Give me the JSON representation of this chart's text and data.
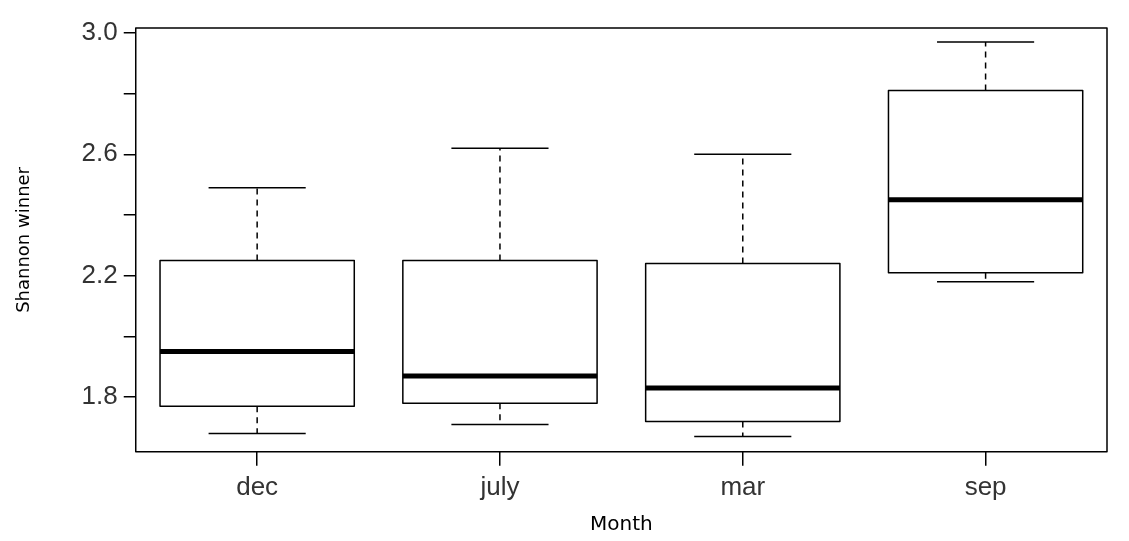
{
  "chart_data": {
    "type": "box",
    "xlabel": "Month",
    "ylabel": "Shannon winner",
    "categories": [
      "dec",
      "july",
      "mar",
      "sep"
    ],
    "boxes": [
      {
        "low": 1.68,
        "q1": 1.77,
        "median": 1.95,
        "q3": 2.25,
        "high": 2.49
      },
      {
        "low": 1.71,
        "q1": 1.78,
        "median": 1.87,
        "q3": 2.25,
        "high": 2.62
      },
      {
        "low": 1.67,
        "q1": 1.72,
        "median": 1.83,
        "q3": 2.24,
        "high": 2.6
      },
      {
        "low": 2.18,
        "q1": 2.21,
        "median": 2.45,
        "q3": 2.81,
        "high": 2.97
      }
    ],
    "ylim": [
      1.62,
      3.016
    ],
    "yticks": [
      {
        "value": 1.8,
        "label": "1.8"
      },
      {
        "value": 2.0,
        "label": null
      },
      {
        "value": 2.2,
        "label": "2.2"
      },
      {
        "value": 2.4,
        "label": null
      },
      {
        "value": 2.6,
        "label": "2.6"
      },
      {
        "value": 2.8,
        "label": null
      },
      {
        "value": 3.0,
        "label": "3.0"
      }
    ]
  }
}
